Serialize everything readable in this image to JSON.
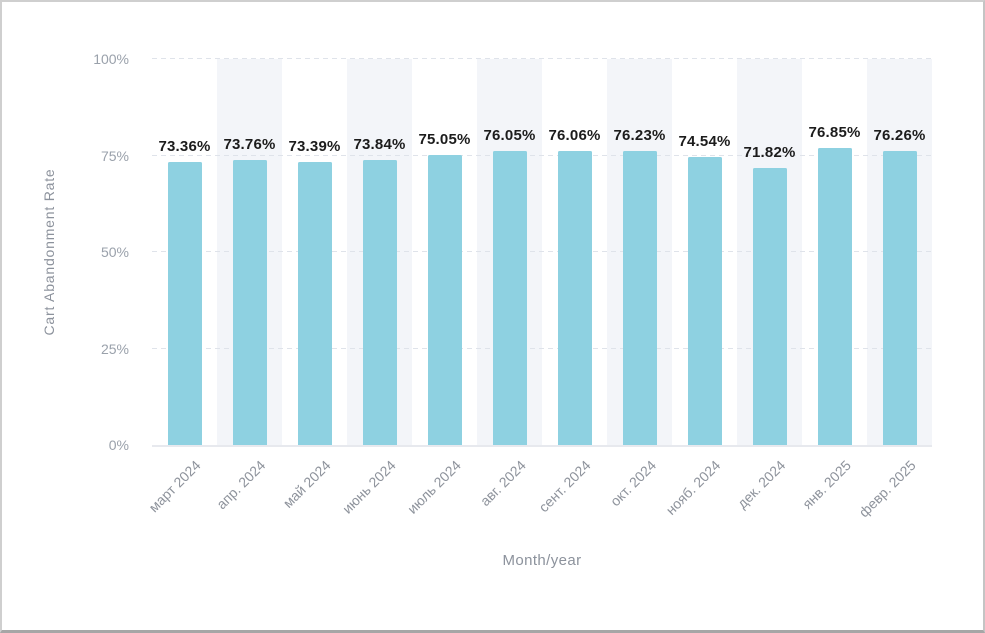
{
  "chart_data": {
    "type": "bar",
    "xlabel": "Month/year",
    "ylabel": "Cart Abandonment Rate",
    "categories": [
      "март 2024",
      "апр. 2024",
      "май 2024",
      "июнь 2024",
      "июль 2024",
      "авг. 2024",
      "сент. 2024",
      "окт. 2024",
      "нояб. 2024",
      "дек. 2024",
      "янв. 2025",
      "февр. 2025"
    ],
    "values": [
      73.36,
      73.76,
      73.39,
      73.84,
      75.05,
      76.05,
      76.06,
      76.23,
      74.54,
      71.82,
      76.85,
      76.26
    ],
    "labels": [
      "73.36%",
      "73.76%",
      "73.39%",
      "73.84%",
      "75.05%",
      "76.05%",
      "76.06%",
      "76.23%",
      "74.54%",
      "71.82%",
      "76.85%",
      "76.26%"
    ],
    "ylim": [
      0,
      100
    ],
    "y_ticks": [
      "0%",
      "25%",
      "50%",
      "75%",
      "100%"
    ],
    "grid": "horizontal dashed at y ticks",
    "legend": "none",
    "banded_columns": "every second column (2nd, 4th, 6th, 8th, 10th, 12th) has light background band",
    "colors": {
      "bar": "#8ed1e1",
      "band": "#f3f5f9",
      "gridline": "#dfe3ea",
      "axis_line": "#e7e9ee",
      "tick_text": "#9aa1ab",
      "value_label": "#1c1c1c",
      "axis_title_text": "#8c929c"
    }
  }
}
